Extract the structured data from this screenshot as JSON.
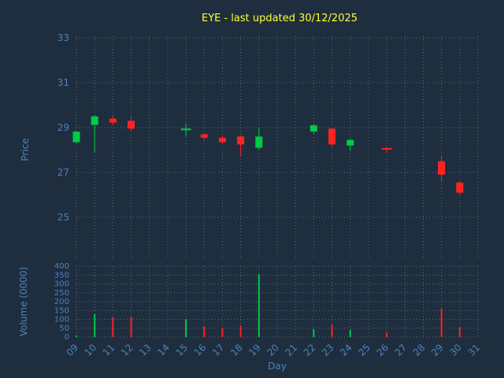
{
  "title": "EYE - last updated 30/12/2025",
  "colors": {
    "background": "#1e2e3e",
    "up": "#00cc44",
    "down": "#ff2222",
    "axis_label": "#4d80c0",
    "tick_label": "#4d80c0",
    "title": "#ffff33",
    "grid": "#5a6b7d"
  },
  "chart_data": {
    "type": "candlestick+volume",
    "title": "EYE - last updated 30/12/2025",
    "xlabel": "Day",
    "price_ylabel": "Price",
    "volume_ylabel": "Volume (0000)",
    "x_ticks": [
      "09",
      "10",
      "11",
      "12",
      "13",
      "14",
      "15",
      "16",
      "17",
      "18",
      "19",
      "20",
      "21",
      "22",
      "23",
      "24",
      "25",
      "26",
      "27",
      "28",
      "29",
      "30",
      "31"
    ],
    "x_day_start": 9,
    "price_ticks": [
      25,
      27,
      29,
      31,
      33
    ],
    "price_ylim": [
      23.1,
      33.1
    ],
    "volume_ticks": [
      0,
      50,
      100,
      150,
      200,
      250,
      300,
      350,
      400
    ],
    "volume_ylim": [
      0,
      400
    ],
    "grid": true,
    "legend_position": "none",
    "candles": [
      {
        "day": 9,
        "open": 28.35,
        "high": 28.82,
        "low": 28.3,
        "close": 28.82,
        "volume": 8
      },
      {
        "day": 10,
        "open": 29.12,
        "high": 29.55,
        "low": 27.9,
        "close": 29.5,
        "volume": 130
      },
      {
        "day": 11,
        "open": 29.4,
        "high": 29.5,
        "low": 29.1,
        "close": 29.22,
        "volume": 110
      },
      {
        "day": 12,
        "open": 29.3,
        "high": 29.5,
        "low": 28.85,
        "close": 28.95,
        "volume": 115
      },
      {
        "day": 15,
        "open": 28.85,
        "high": 29.18,
        "low": 28.6,
        "close": 28.92,
        "volume": 100
      },
      {
        "day": 16,
        "open": 28.7,
        "high": 28.75,
        "low": 28.45,
        "close": 28.55,
        "volume": 60
      },
      {
        "day": 17,
        "open": 28.55,
        "high": 28.62,
        "low": 28.3,
        "close": 28.35,
        "volume": 50
      },
      {
        "day": 18,
        "open": 28.6,
        "high": 28.65,
        "low": 27.75,
        "close": 28.25,
        "volume": 65
      },
      {
        "day": 19,
        "open": 28.1,
        "high": 29.0,
        "low": 28.0,
        "close": 28.6,
        "volume": 355
      },
      {
        "day": 22,
        "open": 28.82,
        "high": 29.15,
        "low": 28.72,
        "close": 29.1,
        "volume": 45
      },
      {
        "day": 23,
        "open": 28.95,
        "high": 29.0,
        "low": 28.15,
        "close": 28.25,
        "volume": 70
      },
      {
        "day": 24,
        "open": 28.2,
        "high": 28.5,
        "low": 27.95,
        "close": 28.45,
        "volume": 40
      },
      {
        "day": 26,
        "open": 28.05,
        "high": 28.12,
        "low": 27.88,
        "close": 28.0,
        "volume": 25
      },
      {
        "day": 29,
        "open": 27.5,
        "high": 27.72,
        "low": 26.6,
        "close": 26.9,
        "volume": 160
      },
      {
        "day": 30,
        "open": 26.55,
        "high": 26.62,
        "low": 26.0,
        "close": 26.1,
        "volume": 55
      }
    ]
  }
}
